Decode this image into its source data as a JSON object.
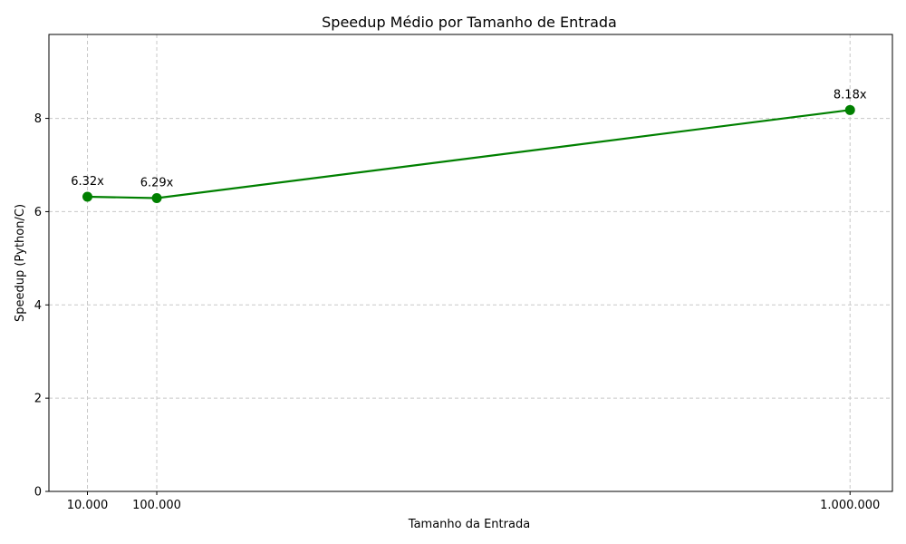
{
  "chart_data": {
    "type": "line",
    "title": "Speedup Médio por Tamanho de Entrada",
    "xlabel": "Tamanho da Entrada",
    "ylabel": "Speedup (Python/C)",
    "x": [
      10000,
      100000,
      1000000
    ],
    "x_tick_labels": [
      "10.000",
      "100.000",
      "1.000.000"
    ],
    "y_ticks": [
      0,
      2,
      4,
      6,
      8
    ],
    "y_tick_labels": [
      "0",
      "2",
      "4",
      "6",
      "8"
    ],
    "ylim": [
      0,
      9.8
    ],
    "xlim": [
      -40000,
      1055000
    ],
    "grid": true,
    "series": [
      {
        "values": [
          6.32,
          6.29,
          8.18
        ],
        "labels": [
          "6.32x",
          "6.29x",
          "8.18x"
        ],
        "color": "#008000"
      }
    ]
  }
}
